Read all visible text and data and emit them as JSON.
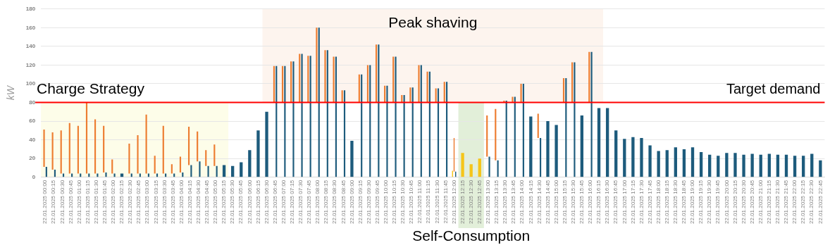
{
  "chart_data": {
    "type": "bar",
    "categories": [
      "22.01.2025 00:00",
      "22.01.2025 00:15",
      "22.01.2025 00:30",
      "22.01.2025 00:45",
      "22.01.2025 01:00",
      "22.01.2025 01:15",
      "22.01.2025 01:30",
      "22.01.2025 01:45",
      "22.01.2025 02:00",
      "22.01.2025 02:15",
      "22.01.2025 02:30",
      "22.01.2025 02:45",
      "22.01.2025 03:00",
      "22.01.2025 03:15",
      "22.01.2025 03:30",
      "22.01.2025 03:45",
      "22.01.2025 04:00",
      "22.01.2025 04:15",
      "22.01.2025 04:30",
      "22.01.2025 04:45",
      "22.01.2025 05:00",
      "22.01.2025 05:15",
      "22.01.2025 05:30",
      "22.01.2025 05:45",
      "22.01.2025 06:00",
      "22.01.2025 06:15",
      "22.01.2025 06:30",
      "22.01.2025 06:45",
      "22.01.2025 07:00",
      "22.01.2025 07:15",
      "22.01.2025 07:30",
      "22.01.2025 07:45",
      "22.01.2025 08:00",
      "22.01.2025 08:15",
      "22.01.2025 08:30",
      "22.01.2025 08:45",
      "22.01.2025 09:00",
      "22.01.2025 09:15",
      "22.01.2025 09:30",
      "22.01.2025 09:45",
      "22.01.2025 10:00",
      "22.01.2025 10:15",
      "22.01.2025 10:30",
      "22.01.2025 10:45",
      "22.01.2025 11:00",
      "22.01.2025 11:15",
      "22.01.2025 11:30",
      "22.01.2025 11:45",
      "22.01.2025 12:00",
      "22.01.2025 12:15",
      "22.01.2025 12:30",
      "22.01.2025 12:45",
      "22.01.2025 13:00",
      "22.01.2025 13:15",
      "22.01.2025 13:30",
      "22.01.2025 13:45",
      "22.01.2025 14:00",
      "22.01.2025 14:15",
      "22.01.2025 14:30",
      "22.01.2025 14:45",
      "22.01.2025 15:00",
      "22.01.2025 15:15",
      "22.01.2025 15:30",
      "22.01.2025 15:45",
      "22.01.2025 16:00",
      "22.01.2025 16:15",
      "22.01.2025 16:30",
      "22.01.2025 16:45",
      "22.01.2025 17:00",
      "22.01.2025 17:15",
      "22.01.2025 17:30",
      "22.01.2025 17:45",
      "22.01.2025 18:00",
      "22.01.2025 18:15",
      "22.01.2025 18:30",
      "22.01.2025 18:45",
      "22.01.2025 19:00",
      "22.01.2025 19:15",
      "22.01.2025 19:30",
      "22.01.2025 19:45",
      "22.01.2025 20:00",
      "22.01.2025 20:15",
      "22.01.2025 20:30",
      "22.01.2025 20:45",
      "22.01.2025 21:00",
      "22.01.2025 21:15",
      "22.01.2025 21:30",
      "22.01.2025 21:45",
      "22.01.2025 22:00",
      "22.01.2025 22:15",
      "22.01.2025 22:30",
      "22.01.2025 22:45"
    ],
    "series": [
      {
        "color": "#f5c518",
        "values": [
          null,
          null,
          null,
          null,
          null,
          null,
          null,
          null,
          null,
          null,
          null,
          null,
          null,
          null,
          null,
          null,
          null,
          null,
          null,
          null,
          null,
          null,
          null,
          null,
          null,
          null,
          null,
          null,
          null,
          null,
          null,
          null,
          null,
          null,
          null,
          null,
          null,
          null,
          null,
          null,
          null,
          null,
          null,
          null,
          null,
          null,
          null,
          null,
          7,
          26,
          14,
          20,
          null,
          null,
          null,
          null,
          null,
          null,
          null,
          null,
          null,
          null,
          null,
          null,
          null,
          null,
          null,
          null,
          null,
          null,
          null,
          null,
          null,
          null,
          null,
          null,
          null,
          null,
          null,
          null,
          null,
          null,
          null,
          null,
          null,
          null,
          null,
          null,
          null,
          null,
          null,
          null
        ]
      },
      {
        "color": "#ed7d31",
        "values": [
          40,
          40,
          46,
          54,
          51,
          76,
          58,
          50,
          15,
          null,
          32,
          41,
          63,
          19,
          51,
          10,
          17,
          41,
          32,
          17,
          23,
          null,
          null,
          null,
          null,
          null,
          null,
          39,
          39,
          44,
          52,
          50,
          80,
          56,
          49,
          13,
          null,
          30,
          40,
          62,
          18,
          49,
          8,
          16,
          40,
          33,
          15,
          22,
          36,
          null,
          null,
          null,
          44,
          55,
          2,
          6,
          20,
          null,
          26,
          null,
          null,
          26,
          43,
          null,
          54,
          null,
          null,
          null,
          null,
          null,
          null,
          null,
          null,
          null,
          null,
          null,
          null,
          null,
          null,
          null,
          null,
          null,
          null,
          null,
          null,
          null,
          null,
          null,
          null,
          null,
          null,
          null
        ],
        "base": [
          11,
          8,
          4,
          4,
          4,
          4,
          4,
          5,
          4,
          null,
          4,
          4,
          4,
          4,
          4,
          4,
          5,
          13,
          17,
          12,
          12,
          null,
          null,
          null,
          null,
          null,
          null,
          80,
          80,
          80,
          80,
          80,
          80,
          80,
          80,
          80,
          null,
          80,
          80,
          80,
          80,
          80,
          80,
          80,
          80,
          80,
          80,
          80,
          6,
          null,
          null,
          null,
          22,
          18,
          80,
          80,
          80,
          null,
          42,
          null,
          null,
          80,
          80,
          null,
          80,
          null,
          null,
          null,
          null,
          null,
          null,
          null,
          null,
          null,
          null,
          null,
          null,
          null,
          null,
          null,
          null,
          null,
          null,
          null,
          null,
          null,
          null,
          null,
          null,
          null,
          null,
          null
        ]
      },
      {
        "color": "#1d5b7c",
        "values": [
          11,
          8,
          4,
          4,
          4,
          4,
          4,
          5,
          4,
          4,
          4,
          4,
          4,
          4,
          4,
          4,
          5,
          13,
          17,
          12,
          12,
          13,
          12,
          16,
          29,
          50,
          70,
          119,
          119,
          124,
          132,
          130,
          160,
          136,
          129,
          93,
          39,
          110,
          120,
          142,
          98,
          129,
          88,
          96,
          120,
          113,
          95,
          102,
          6,
          null,
          null,
          null,
          22,
          18,
          82,
          86,
          100,
          65,
          42,
          60,
          56,
          106,
          123,
          66,
          134,
          74,
          74,
          50,
          41,
          43,
          42,
          34,
          28,
          29,
          32,
          30,
          32,
          27,
          24,
          23,
          26,
          26,
          24,
          25,
          24,
          25,
          24,
          24,
          23,
          23,
          25,
          18
        ]
      }
    ],
    "ylabel": "kW",
    "ylim": [
      0,
      180
    ],
    "yticks": [
      0,
      20,
      40,
      60,
      80,
      100,
      120,
      140,
      160,
      180
    ],
    "grid": "y",
    "legend": false,
    "ref_lines": [
      {
        "axis": "y",
        "value": 80,
        "label": "Target demand",
        "color": "#ff0000"
      }
    ],
    "bands": [
      {
        "axis": "x",
        "from": "22.01.2025 00:00",
        "to": "22.01.2025 05:15",
        "label": "Charge Strategy",
        "color": "#fdfde9"
      },
      {
        "axis": "x",
        "from": "22.01.2025 06:30",
        "to": "22.01.2025 16:15",
        "label": "Peak shaving",
        "color": "#fdf4ee"
      },
      {
        "axis": "x",
        "from": "22.01.2025 12:15",
        "to": "22.01.2025 12:45",
        "label": "Self-Consumption",
        "color": "#e2efd9"
      }
    ]
  }
}
